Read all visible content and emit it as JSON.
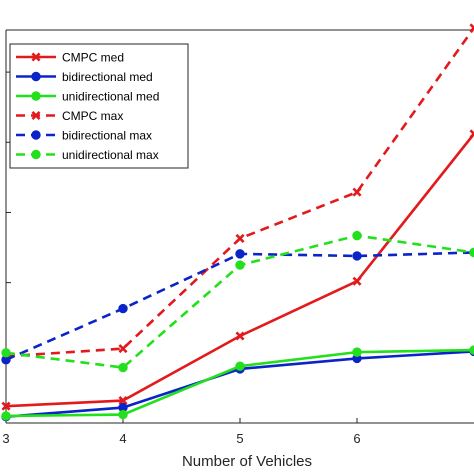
{
  "chart_data": {
    "type": "line",
    "xlabel": "Number of Vehicles",
    "ylabel": "",
    "x": [
      3,
      4,
      5,
      6,
      7
    ],
    "xlim": [
      3,
      7
    ],
    "x_ticks": [
      "3",
      "4",
      "5",
      "6"
    ],
    "yscale": "log",
    "ylim_decades": [
      0,
      5.6
    ],
    "grid": false,
    "legend_position": "top-left",
    "series": [
      {
        "name": "CMPC med",
        "color": "#e31a1c",
        "linestyle": "solid",
        "marker": "x",
        "log_values": [
          0.24,
          0.32,
          1.24,
          2.02,
          4.12
        ]
      },
      {
        "name": "bidirectional med",
        "color": "#0b24c8",
        "linestyle": "solid",
        "marker": "o",
        "log_values": [
          0.09,
          0.22,
          0.77,
          0.92,
          1.02
        ]
      },
      {
        "name": "unidirectional med",
        "color": "#22e01c",
        "linestyle": "solid",
        "marker": "o",
        "log_values": [
          0.1,
          0.12,
          0.81,
          1.01,
          1.04
        ]
      },
      {
        "name": "CMPC max",
        "color": "#e31a1c",
        "linestyle": "dashed",
        "marker": "x",
        "log_values": [
          0.95,
          1.06,
          2.63,
          3.29,
          5.63
        ]
      },
      {
        "name": "bidirectional max",
        "color": "#0b24c8",
        "linestyle": "dashed",
        "marker": "o",
        "log_values": [
          0.9,
          1.63,
          2.41,
          2.38,
          2.43
        ]
      },
      {
        "name": "unidirectional max",
        "color": "#22e01c",
        "linestyle": "dashed",
        "marker": "o",
        "log_values": [
          1.0,
          0.79,
          2.25,
          2.67,
          2.43
        ]
      }
    ]
  }
}
